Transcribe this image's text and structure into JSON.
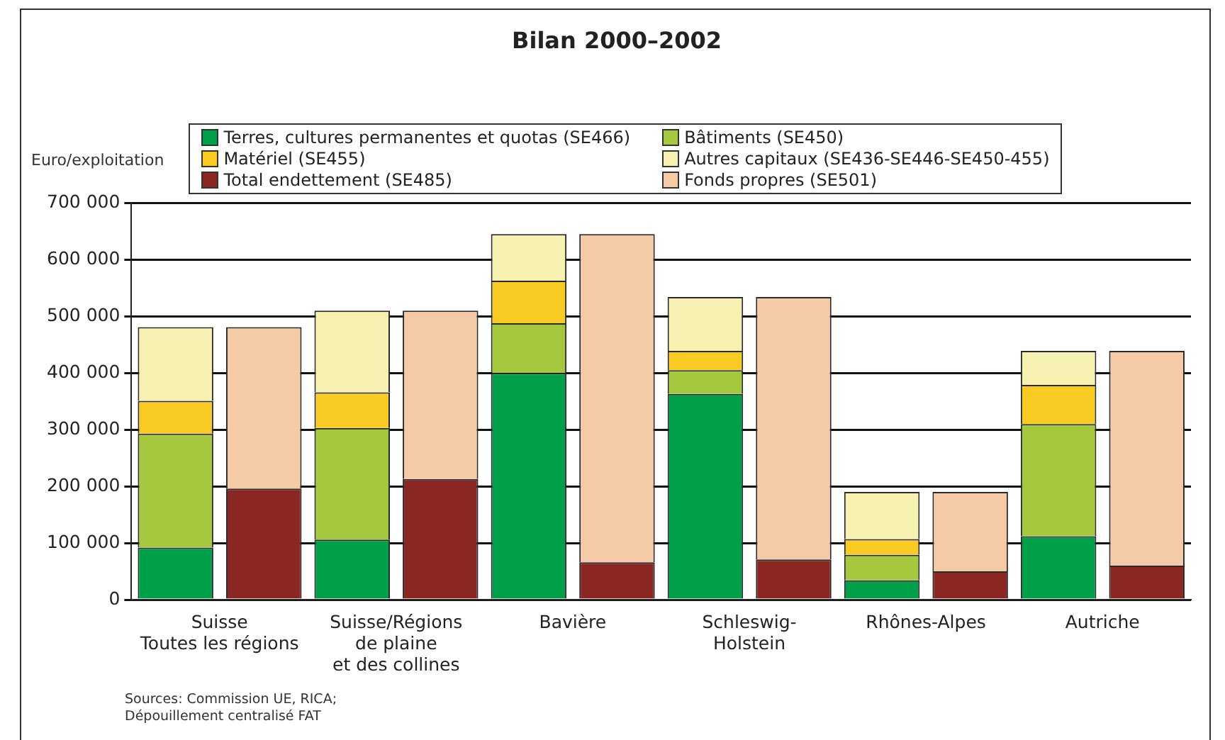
{
  "chart_data": {
    "type": "bar",
    "title": "Bilan 2000–2002",
    "ylabel": "Euro/exploitation",
    "annotations": [
      "Sources: Commission UE, RICA;\nDépouillement centralisé FAT"
    ],
    "categories": [
      "Suisse\nToutes les régions",
      null,
      "Suisse/Régions\nde plaine\net des collines",
      null,
      "Bavière",
      null,
      "Schleswig-\nHolstein",
      null,
      "Rhônes-Alpes",
      null,
      "Autriche",
      null
    ],
    "stacked": true,
    "series": [
      {
        "name": "Terres, cultures permanentes et quotas (SE466)",
        "color": "#00a04a",
        "values": [
          92000,
          null,
          106000,
          null,
          400000,
          null,
          363000,
          null,
          34000,
          null,
          112000,
          null
        ]
      },
      {
        "name": "Bâtiments (SE450)",
        "color": "#a6c83f",
        "values": [
          201000,
          null,
          197000,
          null,
          88000,
          null,
          42000,
          null,
          45000,
          null,
          198000,
          null
        ]
      },
      {
        "name": "Matériel (SE455)",
        "color": "#f9cb22",
        "values": [
          58000,
          null,
          63000,
          null,
          75000,
          null,
          34000,
          null,
          28000,
          null,
          69000,
          null
        ]
      },
      {
        "name": "Autres capitaux (SE436-SE446-SE450-455)",
        "color": "#f6f1b0",
        "values": [
          130000,
          null,
          144000,
          null,
          82000,
          null,
          95000,
          null,
          83000,
          null,
          60000,
          null
        ]
      },
      {
        "name": "Total endettement (SE485)",
        "color": "#8b2723",
        "values": [
          null,
          196000,
          null,
          213000,
          null,
          66000,
          null,
          71000,
          null,
          50000,
          null,
          60000
        ]
      },
      {
        "name": "Fonds propres (SE501)",
        "color": "#f5cba7",
        "values": [
          null,
          285000,
          null,
          297000,
          null,
          579000,
          null,
          463000,
          null,
          140000,
          null,
          379000
        ]
      }
    ],
    "ylim": [
      0,
      700000
    ],
    "yticks": [
      {
        "value": 0,
        "label": "0"
      },
      {
        "value": 100000,
        "label": "100 000"
      },
      {
        "value": 200000,
        "label": "200 000"
      },
      {
        "value": 300000,
        "label": "300 000"
      },
      {
        "value": 400000,
        "label": "400 000"
      },
      {
        "value": 500000,
        "label": "500 000"
      },
      {
        "value": 600000,
        "label": "600 000"
      },
      {
        "value": 700000,
        "label": "700 000"
      }
    ],
    "grid": "y",
    "legend": "top"
  }
}
